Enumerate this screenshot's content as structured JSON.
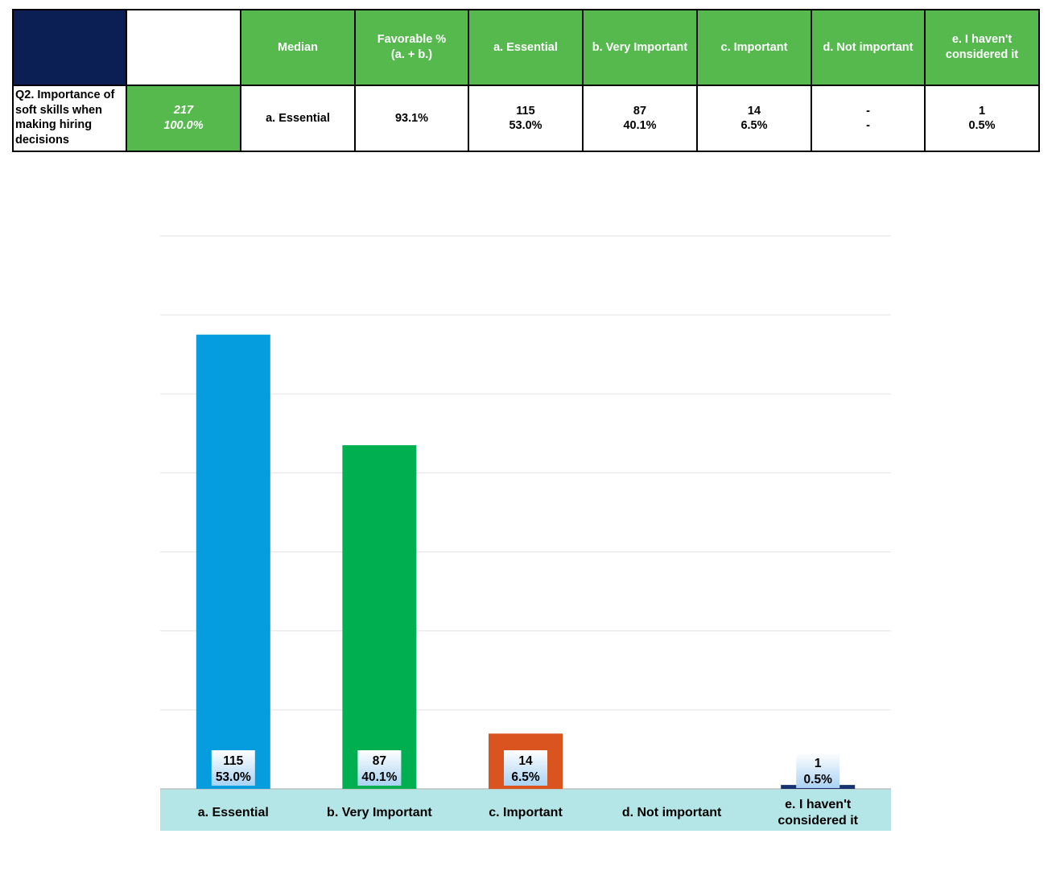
{
  "table": {
    "headers": [
      "Median",
      "Favorable %\n(a. + b.)",
      "a. Essential",
      "b. Very Important",
      "c. Important",
      "d. Not important",
      "e. I haven't considered it"
    ],
    "question": "Q2. Importance of soft skills when making hiring decisions",
    "total_n": "217",
    "total_pct": "100.0%",
    "median": "a. Essential",
    "favorable": "93.1%",
    "cells": [
      {
        "count": "115",
        "pct": "53.0%"
      },
      {
        "count": "87",
        "pct": "40.1%"
      },
      {
        "count": "14",
        "pct": "6.5%"
      },
      {
        "count": "-",
        "pct": "-"
      },
      {
        "count": "1",
        "pct": "0.5%"
      }
    ]
  },
  "chart_data": {
    "type": "bar",
    "categories": [
      "a. Essential",
      "b. Very Important",
      "c. Important",
      "d. Not important",
      "e. I haven't considered it"
    ],
    "values": [
      115,
      87,
      14,
      0,
      1
    ],
    "data_labels": [
      {
        "count": "115",
        "pct": "53.0%"
      },
      {
        "count": "87",
        "pct": "40.1%"
      },
      {
        "count": "14",
        "pct": "6.5%"
      },
      {
        "count": "",
        "pct": ""
      },
      {
        "count": "1",
        "pct": "0.5%"
      }
    ],
    "colors": [
      "#069dde",
      "#00b050",
      "#d9541e",
      "#7f7f7f",
      "#16336f"
    ],
    "ylim": [
      0,
      140
    ],
    "grid": true,
    "axis_band_color": "#b4e6e8",
    "title": "",
    "xlabel": "",
    "ylabel": ""
  }
}
